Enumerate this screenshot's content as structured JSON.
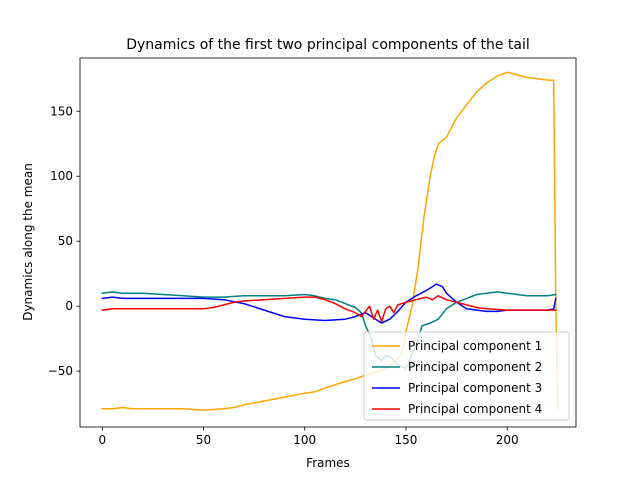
{
  "chart_data": {
    "type": "line",
    "title": "Dynamics of the first two principal components of the tail",
    "xlabel": "Frames",
    "ylabel": "Dynamics along the mean",
    "xlim": [
      -11,
      234
    ],
    "ylim": [
      -93,
      191
    ],
    "xticks": [
      0,
      50,
      100,
      150,
      200
    ],
    "yticks": [
      -50,
      0,
      50,
      100,
      150
    ],
    "grid": false,
    "legend_position": "lower right",
    "series": [
      {
        "name": "Principal component 1",
        "color": "#ffa500",
        "points": [
          [
            0,
            -79
          ],
          [
            5,
            -79
          ],
          [
            10,
            -78
          ],
          [
            15,
            -79
          ],
          [
            20,
            -79
          ],
          [
            30,
            -79
          ],
          [
            40,
            -79
          ],
          [
            50,
            -80
          ],
          [
            60,
            -79
          ],
          [
            65,
            -78
          ],
          [
            70,
            -76
          ],
          [
            80,
            -73
          ],
          [
            90,
            -70
          ],
          [
            100,
            -67
          ],
          [
            105,
            -66
          ],
          [
            110,
            -63
          ],
          [
            120,
            -58
          ],
          [
            125,
            -56
          ],
          [
            130,
            -53
          ],
          [
            135,
            -51
          ],
          [
            140,
            -48
          ],
          [
            145,
            -42
          ],
          [
            148,
            -37
          ],
          [
            150,
            -20
          ],
          [
            153,
            0
          ],
          [
            156,
            30
          ],
          [
            159,
            70
          ],
          [
            162,
            100
          ],
          [
            164,
            115
          ],
          [
            166,
            125
          ],
          [
            170,
            130
          ],
          [
            175,
            145
          ],
          [
            180,
            155
          ],
          [
            185,
            165
          ],
          [
            190,
            172
          ],
          [
            195,
            177
          ],
          [
            200,
            180
          ],
          [
            205,
            178
          ],
          [
            210,
            176
          ],
          [
            215,
            175
          ],
          [
            220,
            174
          ],
          [
            223,
            174
          ],
          [
            224,
            0
          ],
          [
            225,
            -79
          ]
        ]
      },
      {
        "name": "Principal component 2",
        "color": "#008080",
        "points": [
          [
            0,
            10
          ],
          [
            5,
            11
          ],
          [
            10,
            10
          ],
          [
            15,
            10
          ],
          [
            20,
            10
          ],
          [
            30,
            9
          ],
          [
            40,
            8
          ],
          [
            50,
            7
          ],
          [
            60,
            7
          ],
          [
            70,
            8
          ],
          [
            80,
            8
          ],
          [
            90,
            8
          ],
          [
            100,
            9
          ],
          [
            105,
            8
          ],
          [
            110,
            6
          ],
          [
            115,
            5
          ],
          [
            120,
            2
          ],
          [
            125,
            -1
          ],
          [
            128,
            -5
          ],
          [
            130,
            -15
          ],
          [
            133,
            -25
          ],
          [
            135,
            -38
          ],
          [
            138,
            -42
          ],
          [
            140,
            -38
          ],
          [
            143,
            -40
          ],
          [
            146,
            -45
          ],
          [
            150,
            -48
          ],
          [
            155,
            -30
          ],
          [
            158,
            -15
          ],
          [
            162,
            -13
          ],
          [
            166,
            -10
          ],
          [
            170,
            -2
          ],
          [
            175,
            3
          ],
          [
            180,
            6
          ],
          [
            185,
            9
          ],
          [
            190,
            10
          ],
          [
            195,
            11
          ],
          [
            200,
            10
          ],
          [
            205,
            9
          ],
          [
            210,
            8
          ],
          [
            215,
            8
          ],
          [
            220,
            8
          ],
          [
            224,
            9
          ]
        ]
      },
      {
        "name": "Principal component 3",
        "color": "#0000ff",
        "points": [
          [
            0,
            6
          ],
          [
            5,
            7
          ],
          [
            10,
            6
          ],
          [
            20,
            6
          ],
          [
            30,
            6
          ],
          [
            40,
            6
          ],
          [
            50,
            6
          ],
          [
            60,
            5
          ],
          [
            70,
            2
          ],
          [
            80,
            -3
          ],
          [
            90,
            -8
          ],
          [
            100,
            -10
          ],
          [
            110,
            -11
          ],
          [
            120,
            -10
          ],
          [
            125,
            -8
          ],
          [
            130,
            -5
          ],
          [
            135,
            -10
          ],
          [
            138,
            -13
          ],
          [
            142,
            -10
          ],
          [
            146,
            -4
          ],
          [
            150,
            3
          ],
          [
            155,
            8
          ],
          [
            160,
            12
          ],
          [
            165,
            17
          ],
          [
            168,
            15
          ],
          [
            170,
            10
          ],
          [
            175,
            3
          ],
          [
            180,
            -2
          ],
          [
            185,
            -3
          ],
          [
            190,
            -4
          ],
          [
            195,
            -4
          ],
          [
            200,
            -3
          ],
          [
            205,
            -3
          ],
          [
            210,
            -3
          ],
          [
            215,
            -3
          ],
          [
            220,
            -3
          ],
          [
            223,
            -2
          ],
          [
            224,
            6
          ]
        ]
      },
      {
        "name": "Principal component 4",
        "color": "#ff0000",
        "points": [
          [
            0,
            -3
          ],
          [
            5,
            -2
          ],
          [
            10,
            -2
          ],
          [
            20,
            -2
          ],
          [
            30,
            -2
          ],
          [
            40,
            -2
          ],
          [
            50,
            -2
          ],
          [
            55,
            -1
          ],
          [
            60,
            1
          ],
          [
            65,
            3
          ],
          [
            70,
            4
          ],
          [
            80,
            5
          ],
          [
            90,
            6
          ],
          [
            100,
            7
          ],
          [
            105,
            7
          ],
          [
            110,
            5
          ],
          [
            115,
            2
          ],
          [
            120,
            -2
          ],
          [
            125,
            -5
          ],
          [
            128,
            -8
          ],
          [
            130,
            -4
          ],
          [
            132,
            0
          ],
          [
            134,
            -10
          ],
          [
            136,
            -3
          ],
          [
            138,
            -12
          ],
          [
            140,
            -2
          ],
          [
            142,
            0
          ],
          [
            144,
            -5
          ],
          [
            146,
            1
          ],
          [
            150,
            3
          ],
          [
            155,
            5
          ],
          [
            160,
            7
          ],
          [
            163,
            5
          ],
          [
            166,
            8
          ],
          [
            170,
            5
          ],
          [
            175,
            3
          ],
          [
            180,
            1
          ],
          [
            185,
            -1
          ],
          [
            190,
            -2
          ],
          [
            200,
            -3
          ],
          [
            210,
            -3
          ],
          [
            220,
            -3
          ],
          [
            224,
            -3
          ]
        ]
      }
    ]
  }
}
